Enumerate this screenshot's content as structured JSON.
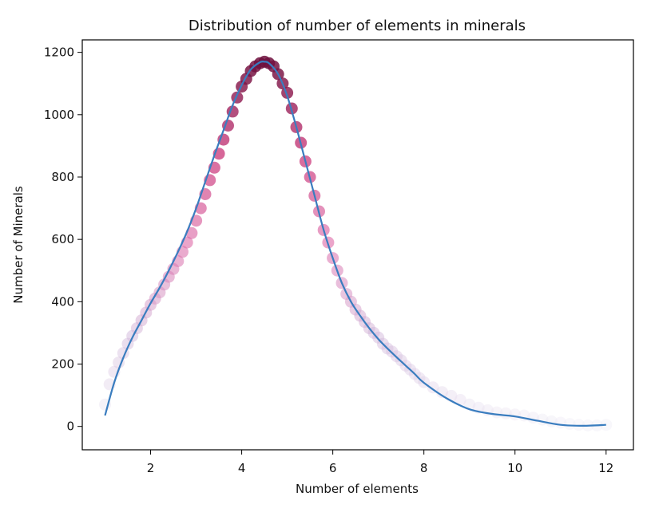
{
  "chart_data": {
    "type": "scatter",
    "title": "Distribution of number of elements in minerals",
    "xlabel": "Number of elements",
    "ylabel": "Number of Minerals",
    "xlim": [
      0.5,
      12.6
    ],
    "ylim": [
      -75,
      1240
    ],
    "xticks": [
      2,
      4,
      6,
      8,
      10,
      12
    ],
    "yticks": [
      0,
      200,
      400,
      600,
      800,
      1000,
      1200
    ],
    "grid": false,
    "legend": "none",
    "line_color": "#3a7dbf",
    "colormap": [
      "#ece9f4",
      "#cfb3d8",
      "#dd6aa8",
      "#c72b72",
      "#6d0f3c"
    ],
    "curve": {
      "x": [
        1.0,
        1.2,
        1.4,
        1.6,
        1.8,
        2.0,
        2.2,
        2.4,
        2.6,
        2.8,
        3.0,
        3.2,
        3.4,
        3.6,
        3.8,
        4.0,
        4.2,
        4.4,
        4.5,
        4.6,
        4.8,
        5.0,
        5.2,
        5.4,
        5.6,
        5.8,
        6.0,
        6.2,
        6.4,
        6.6,
        6.8,
        7.0,
        7.2,
        7.4,
        7.6,
        7.8,
        8.0,
        8.5,
        9.0,
        9.5,
        10.0,
        10.5,
        11.0,
        11.5,
        12.0
      ],
      "y": [
        35,
        140,
        220,
        285,
        340,
        395,
        445,
        500,
        560,
        625,
        700,
        785,
        870,
        950,
        1030,
        1095,
        1145,
        1168,
        1170,
        1165,
        1130,
        1060,
        960,
        850,
        740,
        630,
        540,
        460,
        400,
        355,
        315,
        280,
        250,
        222,
        195,
        168,
        140,
        90,
        55,
        40,
        32,
        18,
        5,
        2,
        5
      ]
    },
    "points": {
      "x": [
        1.0,
        1.1,
        1.2,
        1.3,
        1.4,
        1.5,
        1.6,
        1.7,
        1.8,
        1.9,
        2.0,
        2.1,
        2.2,
        2.3,
        2.4,
        2.5,
        2.6,
        2.7,
        2.8,
        2.9,
        3.0,
        3.1,
        3.2,
        3.3,
        3.4,
        3.5,
        3.6,
        3.7,
        3.8,
        3.9,
        4.0,
        4.1,
        4.2,
        4.3,
        4.4,
        4.5,
        4.6,
        4.7,
        4.8,
        4.9,
        5.0,
        5.1,
        5.2,
        5.3,
        5.4,
        5.5,
        5.6,
        5.7,
        5.8,
        5.9,
        6.0,
        6.1,
        6.2,
        6.3,
        6.4,
        6.5,
        6.6,
        6.7,
        6.8,
        6.9,
        7.0,
        7.1,
        7.2,
        7.3,
        7.4,
        7.5,
        7.6,
        7.7,
        7.8,
        7.9,
        8.0,
        8.2,
        8.4,
        8.6,
        8.8,
        9.0,
        9.2,
        9.4,
        9.6,
        9.8,
        10.0,
        10.2,
        10.4,
        10.6,
        10.8,
        11.0,
        11.2,
        11.4,
        11.6,
        11.8,
        12.0
      ],
      "y": [
        70,
        135,
        175,
        205,
        235,
        265,
        290,
        315,
        340,
        365,
        390,
        410,
        430,
        455,
        480,
        505,
        530,
        560,
        590,
        620,
        660,
        700,
        745,
        790,
        830,
        875,
        920,
        965,
        1010,
        1055,
        1090,
        1115,
        1140,
        1155,
        1165,
        1170,
        1165,
        1155,
        1130,
        1100,
        1070,
        1020,
        960,
        910,
        850,
        800,
        740,
        690,
        630,
        590,
        540,
        500,
        460,
        425,
        400,
        375,
        355,
        335,
        315,
        300,
        285,
        265,
        250,
        240,
        225,
        212,
        195,
        182,
        168,
        155,
        142,
        125,
        110,
        98,
        85,
        70,
        60,
        52,
        45,
        42,
        38,
        35,
        28,
        22,
        16,
        12,
        8,
        5,
        3,
        3,
        5
      ]
    }
  }
}
